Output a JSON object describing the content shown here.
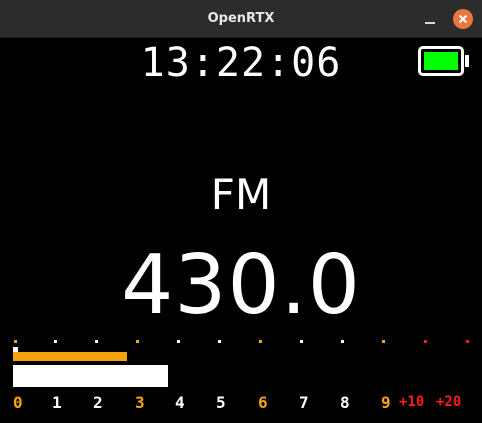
{
  "window": {
    "title": "OpenRTX"
  },
  "status": {
    "time": "13:22:06",
    "battery_level": 1.0,
    "battery_color": "#00ff00"
  },
  "main": {
    "mode": "FM",
    "frequency": "430.0"
  },
  "s_meter": {
    "peak_fraction": 0.25,
    "level_fraction": 0.34,
    "peak_color": "#f5a30c",
    "labels": [
      {
        "text": "0",
        "color": "#f5a30c"
      },
      {
        "text": "1",
        "color": "#ffffff"
      },
      {
        "text": "2",
        "color": "#ffffff"
      },
      {
        "text": "3",
        "color": "#f5a30c"
      },
      {
        "text": "4",
        "color": "#ffffff"
      },
      {
        "text": "5",
        "color": "#ffffff"
      },
      {
        "text": "6",
        "color": "#f5a30c"
      },
      {
        "text": "7",
        "color": "#ffffff"
      },
      {
        "text": "8",
        "color": "#ffffff"
      },
      {
        "text": "9",
        "color": "#f5a30c"
      },
      {
        "text": "+10",
        "color": "#ff1a1a"
      },
      {
        "text": "+20",
        "color": "#ff1a1a"
      }
    ],
    "ticks": [
      "#f5a30c",
      "#ffffff",
      "#ffffff",
      "#f5a30c",
      "#ffffff",
      "#ffffff",
      "#f5a30c",
      "#ffffff",
      "#ffffff",
      "#f5a30c",
      "#ff1a1a",
      "#ff1a1a"
    ]
  },
  "icons": {
    "minimize": "minimize-icon",
    "close": "close-icon"
  }
}
